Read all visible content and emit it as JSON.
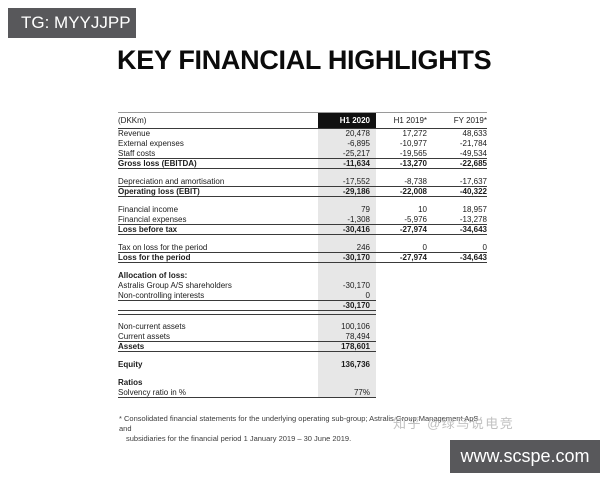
{
  "tg_bar": {
    "label": "TG: MYYJJPP",
    "bg": "#58585b",
    "fg": "#ffffff"
  },
  "title": "KEY FINANCIAL HIGHLIGHTS",
  "table": {
    "type": "table",
    "shade_color": "#e7e7e7",
    "header_cell_bg": "#111111",
    "columns": [
      "(DKKm)",
      "H1 2020",
      "H1 2019*",
      "FY 2019*"
    ],
    "rows": [
      {
        "label": "Revenue",
        "v": [
          "20,478",
          "17,272",
          "48,633"
        ]
      },
      {
        "label": "External expenses",
        "v": [
          "-6,895",
          "-10,977",
          "-21,784"
        ]
      },
      {
        "label": "Staff costs",
        "v": [
          "-25,217",
          "-19,565",
          "-49,534"
        ],
        "border": "full"
      },
      {
        "label": "Gross loss (EBITDA)",
        "v": [
          "-11,634",
          "-13,270",
          "-22,685"
        ],
        "bold": true,
        "border": "full"
      },
      {
        "type": "spacer",
        "h": 8
      },
      {
        "label": "Depreciation and amortisation",
        "v": [
          "-17,552",
          "-8,738",
          "-17,637"
        ],
        "border": "full"
      },
      {
        "label": "Operating loss (EBIT)",
        "v": [
          "-29,186",
          "-22,008",
          "-40,322"
        ],
        "bold": true,
        "border": "full"
      },
      {
        "type": "spacer",
        "h": 8
      },
      {
        "label": "Financial income",
        "v": [
          "79",
          "10",
          "18,957"
        ]
      },
      {
        "label": "Financial expenses",
        "v": [
          "-1,308",
          "-5,976",
          "-13,278"
        ],
        "border": "full"
      },
      {
        "label": "Loss before tax",
        "v": [
          "-30,416",
          "-27,974",
          "-34,643"
        ],
        "bold": true,
        "border": "full"
      },
      {
        "type": "spacer",
        "h": 8
      },
      {
        "label": "Tax on loss for the period",
        "v": [
          "246",
          "0",
          "0"
        ],
        "border": "full"
      },
      {
        "label": "Loss for the period",
        "v": [
          "-30,170",
          "-27,974",
          "-34,643"
        ],
        "bold": true,
        "border": "full"
      },
      {
        "type": "spacer",
        "h": 8
      },
      {
        "label": "Allocation of loss:",
        "v": [
          "",
          "",
          ""
        ],
        "bold": true
      },
      {
        "label": "Astralis Group A/S shareholders",
        "v": [
          "-30,170",
          "",
          ""
        ]
      },
      {
        "label": "Non-controlling interests",
        "v": [
          "0",
          "",
          ""
        ],
        "border": "partial"
      },
      {
        "label": "",
        "v": [
          "-30,170",
          "",
          ""
        ],
        "bold": true,
        "border": "partial"
      },
      {
        "type": "spacer",
        "h": 4,
        "border": "partial"
      },
      {
        "type": "spacer",
        "h": 7
      },
      {
        "label": "Non-current assets",
        "v": [
          "100,106",
          "",
          ""
        ]
      },
      {
        "label": "Current assets",
        "v": [
          "78,494",
          "",
          ""
        ],
        "border": "partial"
      },
      {
        "label": "Assets",
        "v": [
          "178,601",
          "",
          ""
        ],
        "bold": true,
        "border": "partial"
      },
      {
        "type": "spacer",
        "h": 8
      },
      {
        "label": "Equity",
        "v": [
          "136,736",
          "",
          ""
        ],
        "bold": true
      },
      {
        "type": "spacer",
        "h": 8
      },
      {
        "label": "Ratios",
        "v": [
          "",
          "",
          ""
        ],
        "bold": true
      },
      {
        "label": "Solvency ratio in %",
        "v": [
          "77%",
          "",
          ""
        ],
        "border": "partial"
      }
    ]
  },
  "footnote": {
    "line1": "* Consolidated financial statements for the underlying operating sub-group; Astralis Group Management ApS and",
    "line2": "subsidiaries for the financial period 1 January 2019 – 30 June 2019."
  },
  "watermarks": {
    "zhihu": "知乎 @绿鸟说电竞",
    "site": "www.scspe.com",
    "site_bg": "#58585b"
  }
}
